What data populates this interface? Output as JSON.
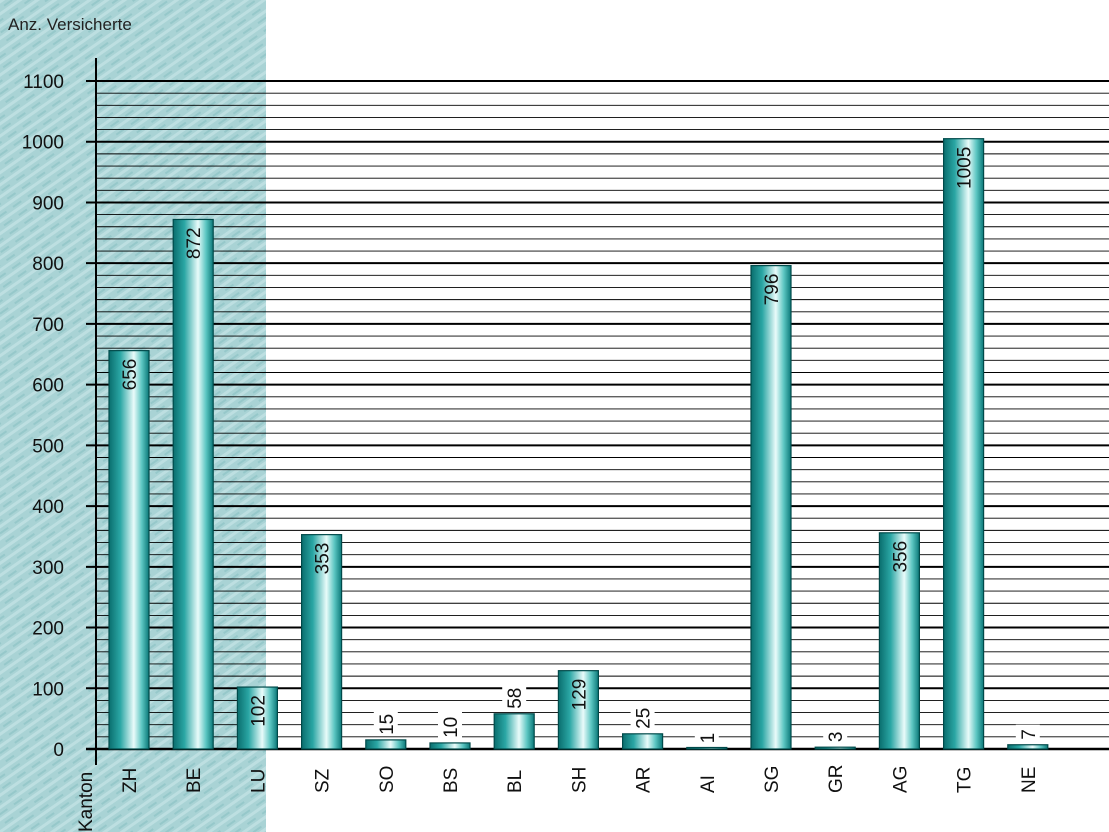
{
  "chart_data": {
    "type": "bar",
    "title": "",
    "ylabel": "Anz. Versicherte",
    "xlabel": "Kanton",
    "ylim": [
      0,
      1100
    ],
    "yticks": [
      0,
      100,
      200,
      300,
      400,
      500,
      600,
      700,
      800,
      900,
      1000,
      1100
    ],
    "minor_step": 20,
    "grid": true,
    "categories": [
      "ZH",
      "BE",
      "LU",
      "SZ",
      "SO",
      "BS",
      "BL",
      "SH",
      "AR",
      "AI",
      "SG",
      "GR",
      "AG",
      "TG",
      "NE"
    ],
    "values": [
      656,
      872,
      102,
      353,
      15,
      10,
      58,
      129,
      25,
      1,
      796,
      3,
      356,
      1005,
      7
    ],
    "colors": {
      "bar_edge": "#004a4a",
      "bar_dark": "#0d7f7f",
      "bar_mid": "#3bb6b2",
      "bar_light": "#e8fbfa",
      "panel": "#a8d2d4",
      "grid": "#000000"
    }
  }
}
